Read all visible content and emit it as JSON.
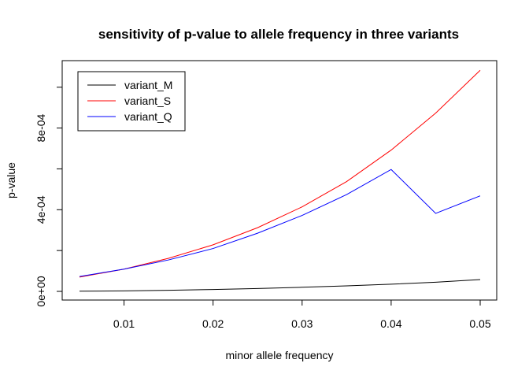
{
  "chart_data": {
    "type": "line",
    "title": "sensitivity of p-value to allele frequency in three variants",
    "xlabel": "minor allele frequency",
    "ylabel": "p-value",
    "x": [
      0.005,
      0.01,
      0.015,
      0.02,
      0.025,
      0.03,
      0.035,
      0.04,
      0.045,
      0.05
    ],
    "xlim": [
      0.005,
      0.05
    ],
    "ylim": [
      0,
      0.00108
    ],
    "x_ticks": [
      0.01,
      0.02,
      0.03,
      0.04,
      0.05
    ],
    "x_tick_labels": [
      "0.01",
      "0.02",
      "0.03",
      "0.04",
      "0.05"
    ],
    "y_ticks": [
      0,
      0.0002,
      0.0004,
      0.0006,
      0.0008,
      0.001
    ],
    "y_tick_labels": [
      "0e+00",
      "",
      "4e-04",
      "",
      "8e-04",
      ""
    ],
    "grid": false,
    "legend_position": "top-left",
    "series": [
      {
        "name": "variant_M",
        "color": "#000000",
        "values": [
          8e-07,
          2.5e-06,
          5.5e-06,
          9e-06,
          1.4e-05,
          2e-05,
          2.7e-05,
          3.5e-05,
          4.5e-05,
          5.8e-05
        ]
      },
      {
        "name": "variant_S",
        "color": "#ff0000",
        "values": [
          7e-05,
          0.000109,
          0.000162,
          0.000228,
          0.000312,
          0.000414,
          0.000538,
          0.000692,
          0.000873,
          0.001083
        ]
      },
      {
        "name": "variant_Q",
        "color": "#0000ff",
        "values": [
          7.3e-05,
          0.000109,
          0.000154,
          0.00021,
          0.000285,
          0.000372,
          0.000474,
          0.000597,
          0.000382,
          0.000468
        ]
      }
    ]
  }
}
